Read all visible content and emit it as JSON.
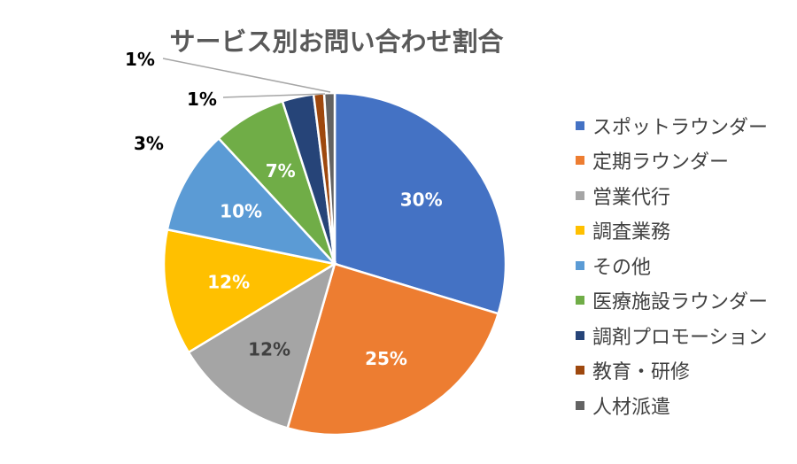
{
  "chart_data": {
    "type": "pie",
    "title": "サービス別お問い合わせ割合",
    "categories": [
      "スポットラウンダー",
      "定期ラウンダー",
      "営業代行",
      "調査業務",
      "その他",
      "医療施設ラウンダー",
      "調剤プロモーション",
      "教育・研修",
      "人材派遣"
    ],
    "values": [
      30,
      25,
      12,
      12,
      10,
      7,
      3,
      1,
      1
    ],
    "data_labels": [
      "30%",
      "25%",
      "12%",
      "12%",
      "10%",
      "7%",
      "3%",
      "1%",
      "1%"
    ],
    "colors": [
      "#4472C4",
      "#ED7D31",
      "#A5A5A5",
      "#FFC000",
      "#5B9BD5",
      "#70AD47",
      "#264478",
      "#9E480E",
      "#636363"
    ],
    "start_angle_deg": 0,
    "direction": "clockwise",
    "legend_position": "right"
  }
}
